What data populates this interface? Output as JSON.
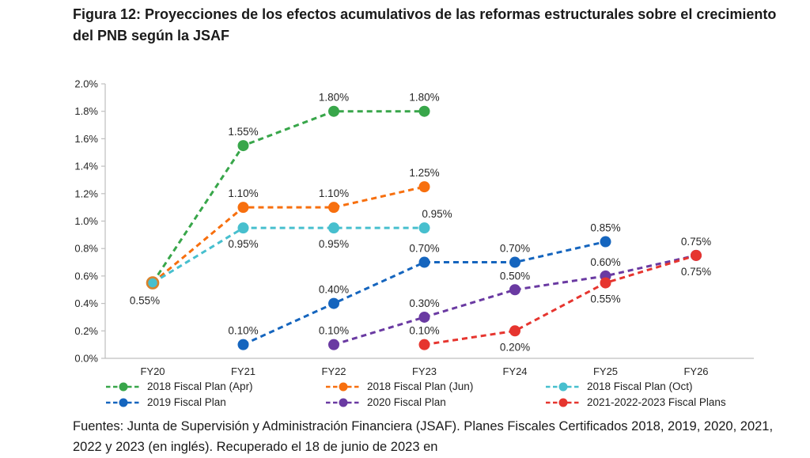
{
  "figure": {
    "title": "Figura 12: Proyecciones de los efectos acumulativos de las reformas estructurales sobre el crecimiento del PNB según la JSAF",
    "source_note": "Fuentes: Junta de Supervisión y Administración Financiera (JSAF). Planes Fiscales Certificados 2018, 2019, 2020, 2021, 2022 y 2023 (en inglés). Recuperado el 18 de junio de 2023 en"
  },
  "chart_data": {
    "type": "line",
    "line_style": "dashed",
    "marker": "circle",
    "grid": false,
    "legend_position": "bottom",
    "categories": [
      "FY20",
      "FY21",
      "FY22",
      "FY23",
      "FY24",
      "FY25",
      "FY26"
    ],
    "y_axis": {
      "min": 0.0,
      "max": 2.0,
      "step": 0.2,
      "tick_labels": [
        "0.0%",
        "0.2%",
        "0.4%",
        "0.6%",
        "0.8%",
        "1.0%",
        "1.2%",
        "1.4%",
        "1.6%",
        "1.8%",
        "2.0%"
      ]
    },
    "axis_color": "#bfbfbf",
    "shared_origin": {
      "category": "FY20",
      "value": 0.55,
      "label": "0.55%",
      "label_pos": "below-left",
      "fill": "#47bfce",
      "ring": "#d9822b"
    },
    "series": [
      {
        "name": "2018 Fiscal Plan (Apr)",
        "color": "#38a64a",
        "points": [
          {
            "x": "FY20",
            "y": 0.55
          },
          {
            "x": "FY21",
            "y": 1.55,
            "label": "1.55%",
            "label_pos": "above"
          },
          {
            "x": "FY22",
            "y": 1.8,
            "label": "1.80%",
            "label_pos": "above"
          },
          {
            "x": "FY23",
            "y": 1.8,
            "label": "1.80%",
            "label_pos": "above"
          }
        ]
      },
      {
        "name": "2018 Fiscal Plan (Jun)",
        "color": "#f76f0e",
        "points": [
          {
            "x": "FY20",
            "y": 0.55
          },
          {
            "x": "FY21",
            "y": 1.1,
            "label": "1.10%",
            "label_pos": "above"
          },
          {
            "x": "FY22",
            "y": 1.1,
            "label": "1.10%",
            "label_pos": "above"
          },
          {
            "x": "FY23",
            "y": 1.25,
            "label": "1.25%",
            "label_pos": "above"
          }
        ]
      },
      {
        "name": "2018 Fiscal Plan (Oct)",
        "color": "#47bfce",
        "points": [
          {
            "x": "FY20",
            "y": 0.55
          },
          {
            "x": "FY21",
            "y": 0.95,
            "label": "0.95%",
            "label_pos": "below"
          },
          {
            "x": "FY22",
            "y": 0.95,
            "label": "0.95%",
            "label_pos": "below"
          },
          {
            "x": "FY23",
            "y": 0.95,
            "label": "0.95%",
            "label_pos": "above-right"
          }
        ]
      },
      {
        "name": "2019 Fiscal Plan",
        "color": "#1565be",
        "points": [
          {
            "x": "FY21",
            "y": 0.1,
            "label": "0.10%",
            "label_pos": "above"
          },
          {
            "x": "FY22",
            "y": 0.4,
            "label": "0.40%",
            "label_pos": "above"
          },
          {
            "x": "FY23",
            "y": 0.7,
            "label": "0.70%",
            "label_pos": "above"
          },
          {
            "x": "FY24",
            "y": 0.7,
            "label": "0.70%",
            "label_pos": "above"
          },
          {
            "x": "FY25",
            "y": 0.85,
            "label": "0.85%",
            "label_pos": "above"
          }
        ]
      },
      {
        "name": "2020 Fiscal Plan",
        "color": "#6a3aa2",
        "points": [
          {
            "x": "FY22",
            "y": 0.1,
            "label": "0.10%",
            "label_pos": "above"
          },
          {
            "x": "FY23",
            "y": 0.3,
            "label": "0.30%",
            "label_pos": "above"
          },
          {
            "x": "FY24",
            "y": 0.5,
            "label": "0.50%",
            "label_pos": "above"
          },
          {
            "x": "FY25",
            "y": 0.6,
            "label": "0.60%",
            "label_pos": "above"
          },
          {
            "x": "FY26",
            "y": 0.75,
            "label": "0.75%",
            "label_pos": "above"
          }
        ]
      },
      {
        "name": "2021-2022-2023 Fiscal Plans",
        "color": "#e6352f",
        "points": [
          {
            "x": "FY23",
            "y": 0.1,
            "label": "0.10%",
            "label_pos": "above"
          },
          {
            "x": "FY24",
            "y": 0.2,
            "label": "0.20%",
            "label_pos": "below"
          },
          {
            "x": "FY25",
            "y": 0.55,
            "label": "0.55%",
            "label_pos": "below"
          },
          {
            "x": "FY26",
            "y": 0.75,
            "label": "0.75%",
            "label_pos": "below"
          }
        ]
      }
    ]
  }
}
